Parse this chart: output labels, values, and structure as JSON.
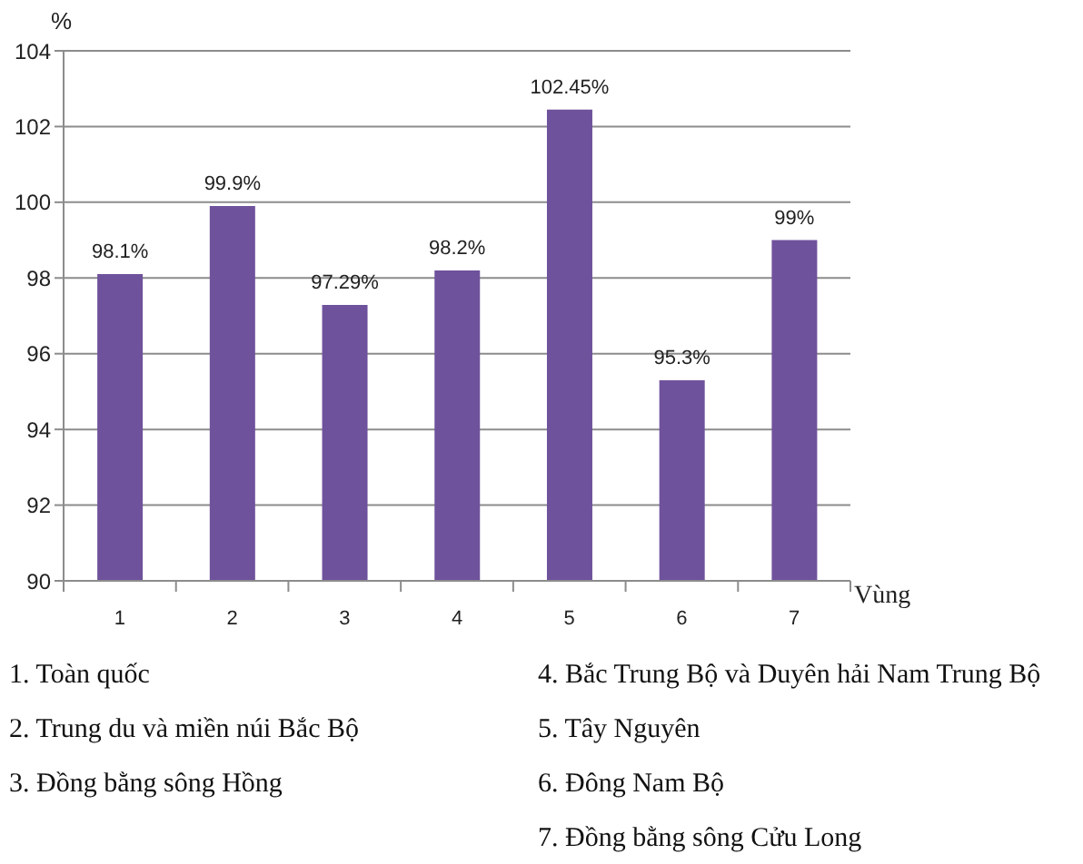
{
  "chart_data": {
    "type": "bar",
    "ylabel": "%",
    "xlabel": "Vùng",
    "categories": [
      "1",
      "2",
      "3",
      "4",
      "5",
      "6",
      "7"
    ],
    "values": [
      98.1,
      99.9,
      97.29,
      98.2,
      102.45,
      95.3,
      99
    ],
    "value_labels": [
      "98.1%",
      "99.9%",
      "97.29%",
      "98.2%",
      "102.45%",
      "95.3%",
      "99%"
    ],
    "color": "#6f529c",
    "ylim": [
      90,
      104
    ],
    "yticks": [
      90,
      92,
      94,
      96,
      98,
      100,
      102,
      104
    ],
    "grid": "y",
    "annotations": [
      "1. Toàn quốc",
      "2. Trung du và miền núi Bắc Bộ",
      "3. Đồng bằng sông Hồng",
      "4. Bắc Trung Bộ và Duyên hải Nam Trung Bộ",
      "5. Tây Nguyên",
      "6. Đông Nam Bộ",
      "7. Đồng bằng sông Cửu Long"
    ]
  }
}
